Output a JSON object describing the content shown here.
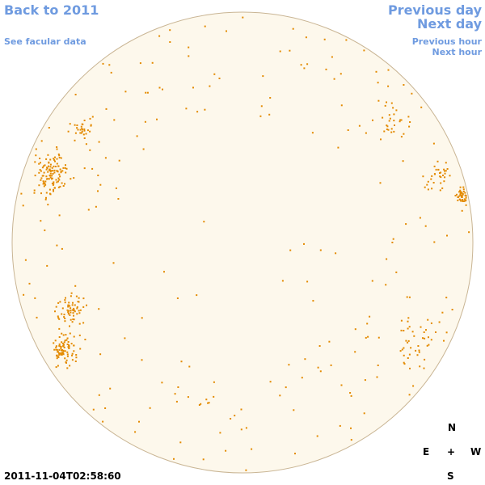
{
  "nav": {
    "back": "Back to 2011",
    "facular_data": "See facular data",
    "previous_day": "Previous day",
    "next_day": "Next day",
    "previous_hour": "Previous hour",
    "next_hour": "Next hour"
  },
  "compass": {
    "north": "N",
    "east": "E",
    "center": "+",
    "west": "W",
    "south": "S"
  },
  "timestamp": "2011-11-04T02:58:60"
}
